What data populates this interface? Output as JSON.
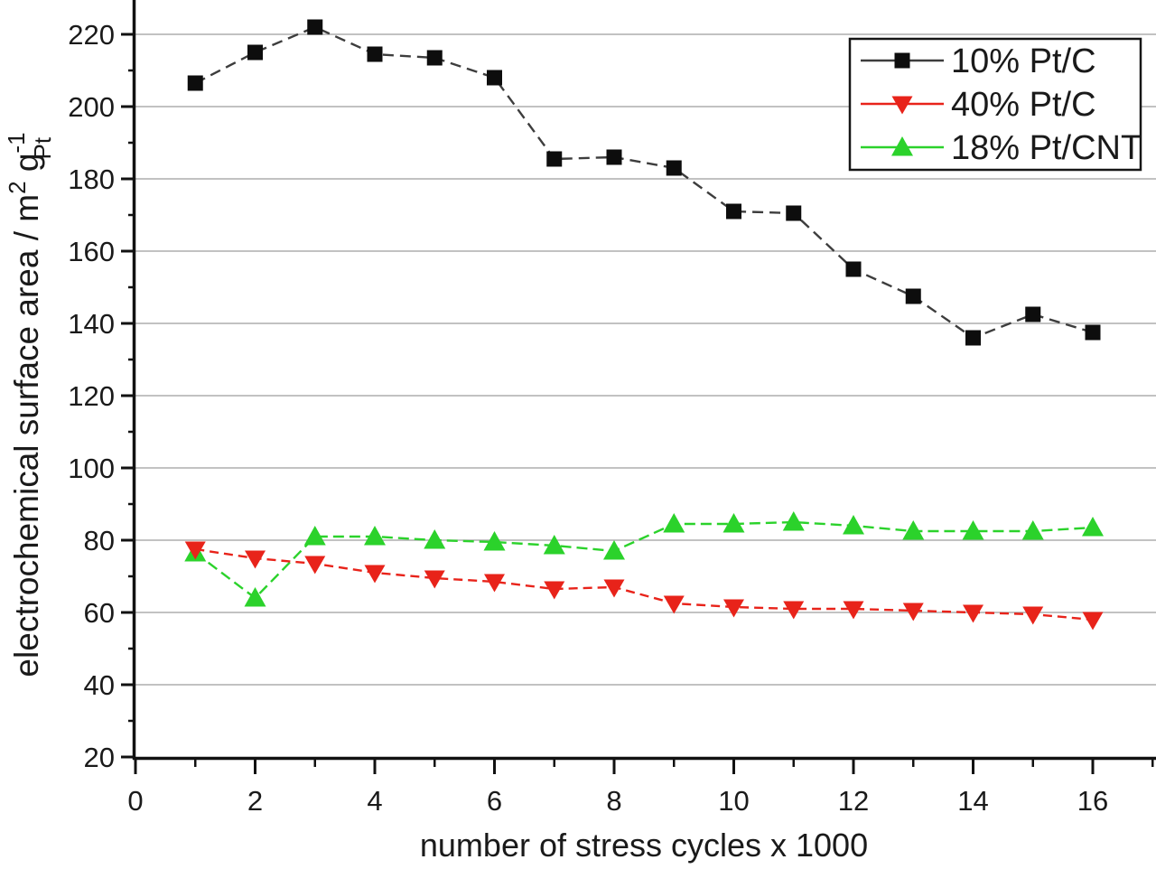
{
  "figure": {
    "background": "#ffffff"
  },
  "chart_data": {
    "type": "line",
    "title": "",
    "xlabel": "number of stress cycles x 1000",
    "ylabel": {
      "main": "electrochemical surface area / m",
      "sup1": "2",
      "mid": " g",
      "sup2": "-1",
      "sub": "Pt"
    },
    "xlim": [
      0,
      17.06
    ],
    "ylim": [
      20,
      229.5
    ],
    "x_major_ticks": [
      0,
      2,
      4,
      6,
      8,
      10,
      12,
      14,
      16
    ],
    "x_minor_ticks": [
      1,
      3,
      5,
      7,
      9,
      11,
      13,
      15,
      17
    ],
    "y_major_ticks": [
      20,
      40,
      60,
      80,
      100,
      120,
      140,
      160,
      180,
      200,
      220
    ],
    "y_minor_ticks": [
      30,
      50,
      70,
      90,
      110,
      130,
      150,
      170,
      190,
      210
    ],
    "gridline_values": [
      40,
      60,
      80,
      100,
      120,
      140,
      160,
      180,
      200,
      220
    ],
    "grid": "horizontal-major",
    "legend_position": "top-right",
    "x": [
      1,
      2,
      3,
      4,
      5,
      6,
      7,
      8,
      9,
      10,
      11,
      12,
      13,
      14,
      15,
      16
    ],
    "series": [
      {
        "name": "10% Pt/C",
        "marker": "square",
        "line_color": "#3d3d3d",
        "marker_color": "#0d0d0d",
        "dash": [
          12,
          7
        ],
        "values": [
          206.5,
          215,
          222,
          214.5,
          213.5,
          208,
          185.5,
          186,
          183,
          171,
          170.5,
          155,
          147.5,
          136,
          142.5,
          137.5
        ]
      },
      {
        "name": "40% Pt/C",
        "marker": "triangle-down",
        "line_color": "#e8231a",
        "marker_color": "#e8231a",
        "dash": [
          10,
          6
        ],
        "values": [
          77.5,
          75,
          73.5,
          71,
          69.5,
          68.5,
          66.5,
          67,
          62.5,
          61.5,
          61,
          61,
          60.5,
          60,
          59.5,
          58
        ]
      },
      {
        "name": "18% Pt/CNT",
        "marker": "triangle-up",
        "line_color": "#2bd22b",
        "marker_color": "#2bd22b",
        "dash": [
          12,
          6
        ],
        "values": [
          76.5,
          64,
          81,
          81,
          80,
          79.5,
          78.5,
          77,
          84.5,
          84.5,
          85,
          84,
          82.5,
          82.5,
          82.5,
          83.5
        ]
      }
    ],
    "colors": {
      "grid": "#adadad",
      "axis": "#111111",
      "tick_text": "#1a1a1a"
    }
  }
}
